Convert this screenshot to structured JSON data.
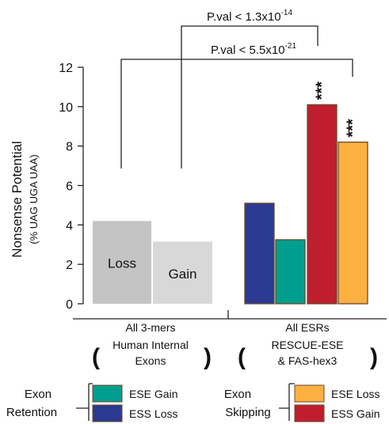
{
  "chart_data": {
    "type": "bar",
    "ylabel": "Nonsense Potential",
    "ylabel_sub": "(% UAG UGA UAA)",
    "ylim": [
      0,
      12
    ],
    "yticks": [
      0,
      2,
      4,
      6,
      8,
      10,
      12
    ],
    "groups": [
      {
        "name": "All 3-mers",
        "paren_lines": [
          "Human Internal",
          "Exons"
        ],
        "bars": [
          {
            "label": "Loss",
            "value": 4.2,
            "color": "#c4c4c4"
          },
          {
            "label": "Gain",
            "value": 3.15,
            "color": "#d8d8d8"
          }
        ]
      },
      {
        "name": "All ESRs",
        "paren_lines": [
          "RESCUE-ESE",
          "& FAS-hex3"
        ],
        "bars": [
          {
            "series": "ESS Loss",
            "value": 5.1,
            "color": "#2b3990"
          },
          {
            "series": "ESE Gain",
            "value": 3.25,
            "color": "#009e8e"
          },
          {
            "series": "ESS Gain",
            "value": 10.1,
            "color": "#be1e2d",
            "annotation": "***"
          },
          {
            "series": "ESE Loss",
            "value": 8.2,
            "color": "#fbb040",
            "annotation": "***"
          }
        ]
      }
    ],
    "comparisons": [
      {
        "text": "P.val < 1.3x10",
        "exponent": "-14"
      },
      {
        "text": "P.val < 5.5x10",
        "exponent": "-21"
      }
    ],
    "legend": {
      "exon_retention": {
        "title_lines": [
          "Exon",
          "Retention"
        ],
        "items": [
          {
            "label": "ESE Gain",
            "color": "#009e8e"
          },
          {
            "label": "ESS Loss",
            "color": "#2b3990"
          }
        ]
      },
      "exon_skipping": {
        "title_lines": [
          "Exon",
          "Skipping"
        ],
        "items": [
          {
            "label": "ESE Loss",
            "color": "#fbb040"
          },
          {
            "label": "ESS Gain",
            "color": "#be1e2d"
          }
        ]
      }
    }
  }
}
